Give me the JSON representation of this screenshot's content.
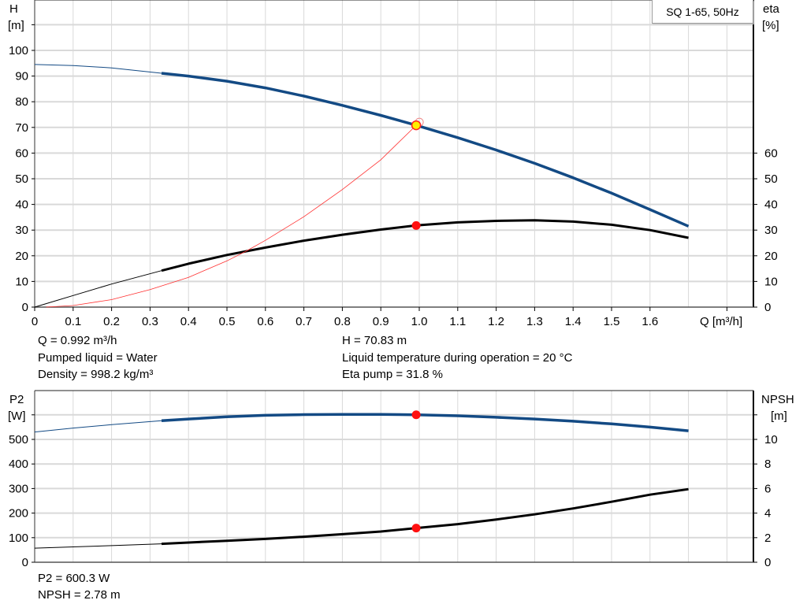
{
  "legend": "SQ 1-65, 50Hz",
  "chart_data": [
    {
      "type": "line",
      "xlabel": "Q [m³/h]",
      "xlim": [
        0,
        1.87
      ],
      "xticks": [
        "0",
        "0.1",
        "0.2",
        "0.3",
        "0.4",
        "0.5",
        "0.6",
        "0.7",
        "0.8",
        "0.9",
        "1.0",
        "1.1",
        "1.2",
        "1.3",
        "1.4",
        "1.5",
        "1.6"
      ],
      "ylabel_left": [
        "H",
        "[m]"
      ],
      "ylabel_right": [
        "eta",
        "[%]"
      ],
      "ylim": [
        0,
        120
      ],
      "yticks_left": [
        "0",
        "10",
        "20",
        "30",
        "40",
        "50",
        "60",
        "70",
        "80",
        "90",
        "100"
      ],
      "yticks_right": [
        "0",
        "10",
        "20",
        "30",
        "40",
        "50",
        "60"
      ],
      "grid": true,
      "series": [
        {
          "id": "H",
          "axis": "left",
          "color": "#134a84",
          "thick_from": 0.33,
          "x": [
            0,
            0.1,
            0.2,
            0.33,
            0.4,
            0.5,
            0.6,
            0.7,
            0.8,
            0.9,
            0.992,
            1.1,
            1.2,
            1.3,
            1.4,
            1.5,
            1.6,
            1.7
          ],
          "y": [
            94.5,
            94.1,
            93.2,
            91.1,
            90.0,
            88.0,
            85.4,
            82.2,
            78.6,
            74.7,
            70.83,
            66.0,
            61.2,
            56.0,
            50.4,
            44.4,
            38.0,
            31.5
          ]
        },
        {
          "id": "eta",
          "axis": "right",
          "color": "#000000",
          "thick_from": 0.33,
          "x": [
            0,
            0.1,
            0.2,
            0.33,
            0.4,
            0.5,
            0.6,
            0.7,
            0.8,
            0.9,
            0.992,
            1.1,
            1.2,
            1.3,
            1.4,
            1.5,
            1.6,
            1.7
          ],
          "y": [
            0,
            4.5,
            9.0,
            14.2,
            16.9,
            20.3,
            23.2,
            25.9,
            28.2,
            30.2,
            31.8,
            33.0,
            33.6,
            33.8,
            33.3,
            32.1,
            30.0,
            27.0
          ]
        },
        {
          "id": "system",
          "axis": "left",
          "color": "#ff3030",
          "thick_from": null,
          "x": [
            0.03,
            0.1,
            0.2,
            0.3,
            0.4,
            0.5,
            0.55,
            0.6,
            0.7,
            0.8,
            0.9,
            0.992
          ],
          "y": [
            0,
            0.6,
            2.9,
            6.8,
            11.6,
            18.0,
            21.8,
            26.0,
            35.2,
            45.8,
            57.4,
            70.83
          ]
        }
      ],
      "duty_point": {
        "Q": 0.992,
        "H": 70.83,
        "eta": 31.8
      }
    },
    {
      "type": "line",
      "xlim": [
        0,
        1.87
      ],
      "ylabel_left": [
        "P2",
        "[W]"
      ],
      "ylabel_right": [
        "NPSH",
        "[m]"
      ],
      "ylim_left": [
        0,
        700
      ],
      "ylim_right": [
        0,
        14
      ],
      "yticks_left": [
        "0",
        "100",
        "200",
        "300",
        "400",
        "500"
      ],
      "yticks_right": [
        "0",
        "2",
        "4",
        "6",
        "8",
        "10"
      ],
      "grid": true,
      "series": [
        {
          "id": "P2",
          "axis": "left",
          "color": "#134a84",
          "thick_from": 0.33,
          "x": [
            0,
            0.1,
            0.2,
            0.33,
            0.4,
            0.5,
            0.6,
            0.7,
            0.8,
            0.9,
            0.992,
            1.1,
            1.2,
            1.3,
            1.4,
            1.5,
            1.6,
            1.7
          ],
          "y": [
            530,
            546,
            560,
            576,
            583,
            592,
            598,
            601,
            602,
            601.5,
            600.3,
            596,
            590,
            583,
            574,
            563,
            550,
            535
          ]
        },
        {
          "id": "NPSH",
          "axis": "right",
          "color": "#000000",
          "thick_from": 0.33,
          "x": [
            0,
            0.1,
            0.2,
            0.33,
            0.4,
            0.5,
            0.6,
            0.7,
            0.8,
            0.9,
            0.992,
            1.1,
            1.2,
            1.3,
            1.4,
            1.5,
            1.6,
            1.7
          ],
          "y": [
            1.15,
            1.25,
            1.35,
            1.5,
            1.6,
            1.75,
            1.9,
            2.08,
            2.28,
            2.5,
            2.78,
            3.1,
            3.48,
            3.9,
            4.38,
            4.92,
            5.5,
            5.95
          ]
        }
      ],
      "duty_point": {
        "P2": 600.3,
        "NPSH": 2.78
      }
    }
  ],
  "readout": {
    "q": "Q = 0.992 m³/h",
    "liquid": "Pumped liquid = Water",
    "density": "Density = 998.2 kg/m³",
    "h": "H = 70.83 m",
    "temp": "Liquid temperature during operation = 20 °C",
    "eta": "Eta pump = 31.8 %",
    "p2": "P2 = 600.3 W",
    "npsh": "NPSH = 2.78 m"
  }
}
